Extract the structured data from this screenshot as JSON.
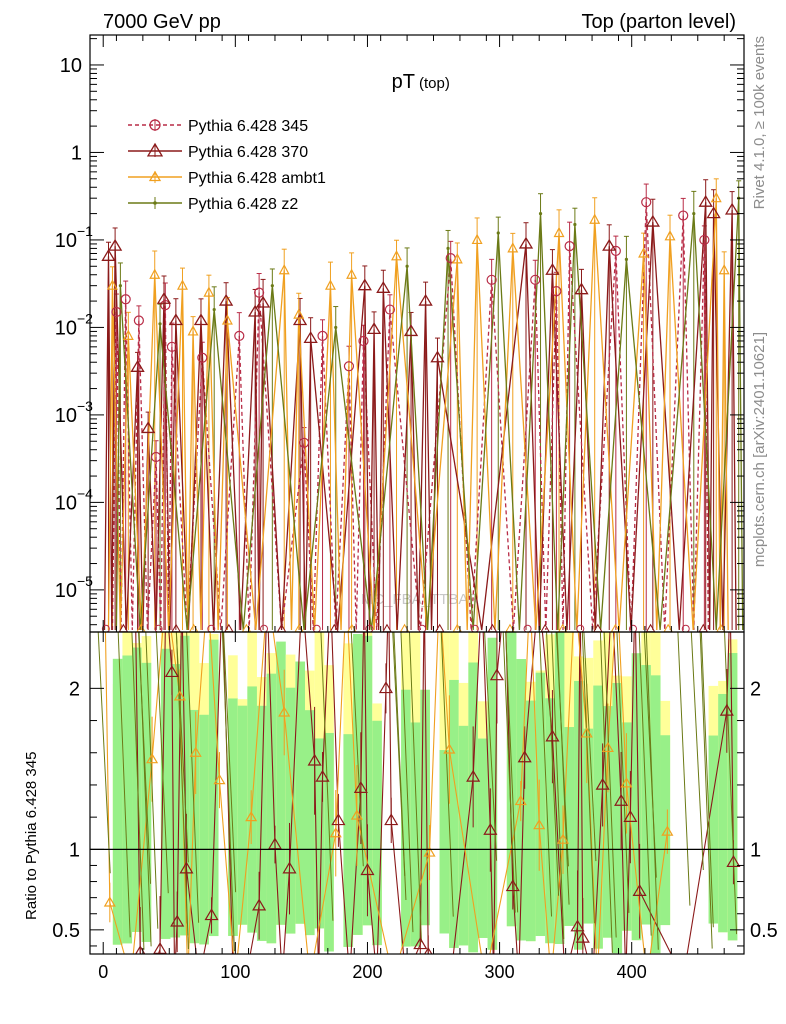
{
  "header": {
    "left": "7000 GeV pp",
    "right": "Top (parton level)"
  },
  "side_labels": {
    "rivet": "Rivet 4.1.0, ≥ 100k events",
    "mcplots": "mcplots.cern.ch [arXiv:2401.10621]"
  },
  "watermark": "MC_FBA_TTBAR",
  "chart_data": {
    "type": "line",
    "title_main": "pT",
    "title_sub": "(top)",
    "x_axis": {
      "range": [
        -10,
        485
      ],
      "ticks": [
        0,
        100,
        200,
        300,
        400
      ],
      "tick_labels": [
        "0",
        "100",
        "200",
        "300",
        "400"
      ],
      "label": ""
    },
    "main_y_axis": {
      "scale": "log",
      "range": [
        3.3e-06,
        22
      ],
      "ticks": [
        1e-05,
        0.0001,
        0.001,
        0.01,
        0.1,
        1,
        10
      ],
      "tick_labels": [
        {
          "base": "10",
          "exp": "−5"
        },
        {
          "base": "10",
          "exp": "−4"
        },
        {
          "base": "10",
          "exp": "−3"
        },
        {
          "base": "10",
          "exp": "−2"
        },
        {
          "base": "10",
          "exp": "−1"
        },
        {
          "base": "1",
          "exp": ""
        },
        {
          "base": "10",
          "exp": ""
        }
      ]
    },
    "ratio_y_axis": {
      "label": "Ratio to Pythia 6.428 345",
      "range": [
        0.35,
        2.35
      ],
      "ticks": [
        0.5,
        1,
        2
      ],
      "tick_labels": [
        "0.5",
        "1",
        "2"
      ],
      "reference_line": 1
    },
    "legend": {
      "placement": "top-left",
      "entries": [
        {
          "label": "Pythia 6.428 345",
          "color": "#b82c46",
          "style": "dashed",
          "marker": "circle"
        },
        {
          "label": "Pythia 6.428 370",
          "color": "#8b1a1a",
          "style": "solid",
          "marker": "triangle"
        },
        {
          "label": "Pythia 6.428 ambt1",
          "color": "#f0a020",
          "style": "solid",
          "marker": "triangle"
        },
        {
          "label": "Pythia 6.428 z2",
          "color": "#6b7a16",
          "style": "solid",
          "marker": "dot"
        }
      ]
    },
    "band_colors": {
      "inner": "#98f088",
      "outer": "#ffff99"
    },
    "series": [
      {
        "name": "Pythia 6.428 345",
        "points": [
          [
            10,
            0.015
          ],
          [
            17,
            0.021
          ],
          [
            27,
            0.012
          ],
          [
            40,
            0.00033
          ],
          [
            47,
            0.018
          ],
          [
            52,
            0.006
          ],
          [
            75,
            0.0045
          ],
          [
            103,
            0.008
          ],
          [
            118,
            0.025
          ],
          [
            152,
            0.00048
          ],
          [
            166,
            0.008
          ],
          [
            186,
            0.0036
          ],
          [
            197,
            0.007
          ],
          [
            217,
            0.016
          ],
          [
            263,
            0.062
          ],
          [
            294,
            0.035
          ],
          [
            327,
            0.035
          ],
          [
            343,
            0.026
          ],
          [
            353,
            0.085
          ],
          [
            388,
            0.075
          ],
          [
            411,
            0.27
          ],
          [
            439,
            0.19
          ],
          [
            455,
            0.1
          ]
        ]
      },
      {
        "name": "Pythia 6.428 370",
        "points": [
          [
            4,
            0.065
          ],
          [
            9,
            0.085
          ],
          [
            26,
            0.0035
          ],
          [
            34,
            0.0007
          ],
          [
            46,
            0.021
          ],
          [
            55,
            0.012
          ],
          [
            74,
            0.012
          ],
          [
            93,
            0.02
          ],
          [
            115,
            0.015
          ],
          [
            121,
            0.019
          ],
          [
            149,
            0.012
          ],
          [
            157,
            0.0075
          ],
          [
            198,
            0.03
          ],
          [
            205,
            0.0095
          ],
          [
            212,
            0.028
          ],
          [
            233,
            0.009
          ],
          [
            244,
            0.02
          ],
          [
            253,
            0.0045
          ],
          [
            320,
            0.09
          ],
          [
            340,
            0.045
          ],
          [
            362,
            0.027
          ],
          [
            383,
            0.085
          ],
          [
            416,
            0.16
          ],
          [
            456,
            0.27
          ],
          [
            462,
            0.2
          ],
          [
            476,
            0.22
          ]
        ]
      },
      {
        "name": "Pythia 6.428 ambt1",
        "points": [
          [
            7,
            0.03
          ],
          [
            19,
            0.008
          ],
          [
            39,
            0.04
          ],
          [
            60,
            0.03
          ],
          [
            68,
            0.009
          ],
          [
            80,
            0.025
          ],
          [
            94,
            0.012
          ],
          [
            137,
            0.045
          ],
          [
            148,
            0.014
          ],
          [
            172,
            0.03
          ],
          [
            188,
            0.04
          ],
          [
            222,
            0.065
          ],
          [
            268,
            0.06
          ],
          [
            283,
            0.1
          ],
          [
            310,
            0.08
          ],
          [
            345,
            0.12
          ],
          [
            372,
            0.17
          ],
          [
            409,
            0.07
          ],
          [
            429,
            0.11
          ],
          [
            464,
            0.3
          ],
          [
            470,
            0.045
          ]
        ]
      },
      {
        "name": "Pythia 6.428 z2",
        "points": [
          [
            13,
            0.03
          ],
          [
            43,
            0.011
          ],
          [
            84,
            0.016
          ],
          [
            128,
            0.03
          ],
          [
            176,
            0.01
          ],
          [
            230,
            0.05
          ],
          [
            261,
            0.08
          ],
          [
            299,
            0.12
          ],
          [
            331,
            0.2
          ],
          [
            357,
            0.15
          ],
          [
            396,
            0.06
          ],
          [
            447,
            0.2
          ],
          [
            481,
            0.3
          ]
        ]
      }
    ],
    "ratio_markers": [
      {
        "series": "Pythia 6.428 370",
        "points": [
          [
            28,
            0.36
          ],
          [
            43,
            0.38
          ],
          [
            52,
            2.1
          ],
          [
            56,
            0.55
          ],
          [
            63,
            0.88
          ],
          [
            82,
            0.59
          ],
          [
            98,
            0.32
          ],
          [
            118,
            0.65
          ],
          [
            130,
            1.03
          ],
          [
            141,
            0.88
          ],
          [
            160,
            1.55
          ],
          [
            166,
            1.45
          ],
          [
            178,
            1.18
          ],
          [
            195,
            1.38
          ],
          [
            200,
            0.87
          ],
          [
            214,
            2.0
          ],
          [
            218,
            1.18
          ],
          [
            240,
            0.41
          ],
          [
            246,
            0.35
          ],
          [
            280,
            1.45
          ],
          [
            293,
            1.12
          ],
          [
            298,
            2.08
          ],
          [
            310,
            0.77
          ],
          [
            319,
            1.57
          ],
          [
            340,
            1.7
          ],
          [
            359,
            0.52
          ],
          [
            363,
            0.45
          ],
          [
            378,
            1.4
          ],
          [
            392,
            1.3
          ],
          [
            399,
            1.2
          ],
          [
            406,
            0.74
          ],
          [
            472,
            1.86
          ],
          [
            477,
            0.92
          ]
        ]
      },
      {
        "series": "Pythia 6.428 ambt1",
        "points": [
          [
            5,
            0.67
          ],
          [
            37,
            1.56
          ],
          [
            58,
            1.95
          ],
          [
            70,
            1.6
          ],
          [
            88,
            1.43
          ],
          [
            112,
            1.2
          ],
          [
            137,
            1.85
          ],
          [
            176,
            1.1
          ],
          [
            192,
            1.21
          ],
          [
            247,
            0.98
          ],
          [
            262,
            1.62
          ],
          [
            316,
            1.3
          ],
          [
            330,
            1.15
          ],
          [
            348,
            1.06
          ],
          [
            366,
            1.72
          ],
          [
            382,
            1.63
          ],
          [
            396,
            1.41
          ],
          [
            427,
            1.11
          ]
        ]
      }
    ]
  }
}
